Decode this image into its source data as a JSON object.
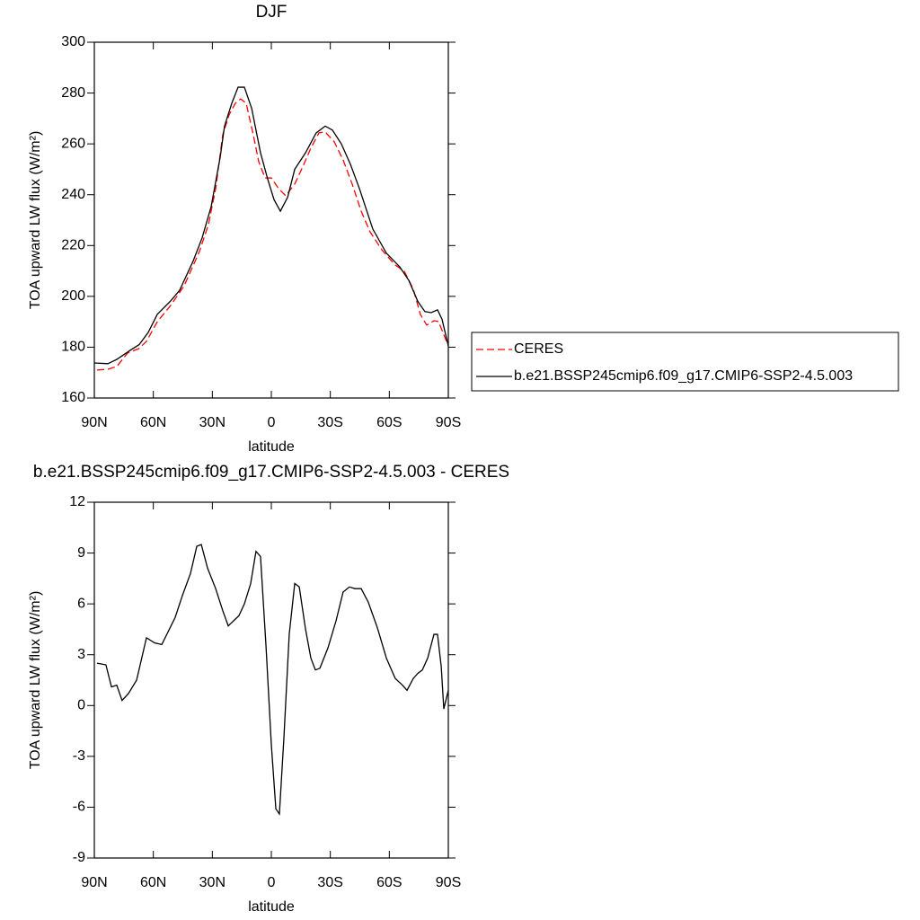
{
  "chart_data": [
    {
      "type": "line",
      "title": "DJF",
      "xlabel": "latitude",
      "ylabel": "TOA upward LW flux (W/m²)",
      "xlim": [
        90,
        -90
      ],
      "ylim": [
        160,
        300
      ],
      "xticks": [
        {
          "value": 90,
          "label": "90N"
        },
        {
          "value": 60,
          "label": "60N"
        },
        {
          "value": 30,
          "label": "30N"
        },
        0,
        {
          "value": -30,
          "label": "30S"
        },
        {
          "value": -60,
          "label": "60S"
        },
        {
          "value": -90,
          "label": "90S"
        }
      ],
      "yticks": [
        160,
        180,
        200,
        220,
        240,
        260,
        280,
        300
      ],
      "legend": "right",
      "series": [
        {
          "name": "CERES",
          "color": "#ff0000",
          "style": "dashed",
          "x": [
            88.6,
            83.1,
            78.6,
            73.1,
            67.2,
            63.5,
            58.0,
            51.2,
            44.3,
            36.6,
            32.0,
            28.3,
            24.7,
            21.5,
            18.3,
            15.6,
            12.8,
            9.2,
            6.4,
            3.2,
            0,
            -3.7,
            -7.3,
            -11.9,
            -15.5,
            -20.1,
            -24.2,
            -27.4,
            -32.0,
            -36.5,
            -41.1,
            -45.7,
            -50.2,
            -56.2,
            -63.0,
            -67.6,
            -72.2,
            -75.8,
            -79.0,
            -82.7,
            -85.0,
            -90
          ],
          "values": [
            171,
            171.3,
            172.4,
            177.7,
            179.5,
            182.3,
            190,
            196.4,
            204.2,
            217.6,
            228.2,
            242.4,
            263.6,
            271.4,
            276,
            277.7,
            276,
            263.6,
            253,
            246.6,
            246.6,
            242.4,
            239.6,
            244.2,
            250.2,
            258.3,
            264.3,
            264.7,
            260.8,
            253.7,
            244.2,
            233.5,
            225.4,
            218.3,
            212.3,
            209.9,
            202.8,
            192.9,
            188.7,
            190.4,
            190.1,
            180.5
          ]
        },
        {
          "name": "b.e21.BSSP245cmip6.f09_g17.CMIP6-SSP2-4.5.003",
          "color": "#000000",
          "style": "solid",
          "x": [
            90,
            83.1,
            78.6,
            71.7,
            67.2,
            62.6,
            58.0,
            51.2,
            46.6,
            39.7,
            35.2,
            30.6,
            26.0,
            23.8,
            20.1,
            16.9,
            13.7,
            10.0,
            5.5,
            1.8,
            -1.4,
            -4.6,
            -8.3,
            -11.9,
            -17.4,
            -22.8,
            -27.4,
            -31.1,
            -35.6,
            -40.2,
            -44.8,
            -51.6,
            -58.5,
            -65.3,
            -69.9,
            -74.5,
            -78.1,
            -81.3,
            -84.5,
            -86.8,
            -90
          ],
          "values": [
            173.8,
            173.5,
            175.2,
            178.8,
            181,
            185.8,
            192.9,
            198.2,
            202.4,
            214,
            223,
            235.3,
            254.8,
            267,
            276,
            282.3,
            282.3,
            274,
            256.5,
            246,
            238,
            233.5,
            239,
            250,
            256.5,
            264.3,
            267,
            265.4,
            260,
            252,
            242.4,
            226.5,
            217,
            211.6,
            206.3,
            198,
            194,
            193.6,
            194.7,
            191,
            180.5
          ]
        }
      ]
    },
    {
      "type": "line",
      "title": "b.e21.BSSP245cmip6.f09_g17.CMIP6-SSP2-4.5.003 - CERES",
      "xlabel": "latitude",
      "ylabel": "TOA upward LW flux (W/m²)",
      "xlim": [
        90,
        -90
      ],
      "ylim": [
        -9,
        12
      ],
      "xticks": [
        {
          "value": 90,
          "label": "90N"
        },
        {
          "value": 60,
          "label": "60N"
        },
        {
          "value": 30,
          "label": "30N"
        },
        0,
        {
          "value": -30,
          "label": "30S"
        },
        {
          "value": -60,
          "label": "60S"
        },
        {
          "value": -90,
          "label": "90S"
        }
      ],
      "yticks": [
        -9,
        -6,
        -3,
        0,
        3,
        6,
        9,
        12
      ],
      "color": "#000000",
      "x": [
        88.6,
        84.1,
        81.3,
        78.6,
        75.9,
        72.7,
        68.5,
        63.5,
        59.4,
        55.7,
        48.9,
        45.2,
        41.1,
        37.9,
        35.6,
        32.4,
        28.3,
        24.7,
        21.9,
        16.5,
        13.7,
        10.5,
        7.8,
        5.5,
        2.7,
        0,
        -2.3,
        -4.1,
        -6.4,
        -9.1,
        -11.9,
        -14.2,
        -17.4,
        -20.1,
        -22.4,
        -24.7,
        -28.8,
        -32.9,
        -36.5,
        -39.7,
        -42.5,
        -45.7,
        -49.3,
        -53.9,
        -58.5,
        -63.0,
        -66.7,
        -69.0,
        -72.2,
        -74.5,
        -76.8,
        -79.5,
        -82.7,
        -84.5,
        -86.4,
        -87.7,
        -90
      ],
      "values": [
        2.5,
        2.4,
        1.1,
        1.2,
        0.3,
        0.7,
        1.5,
        4.0,
        3.7,
        3.6,
        5.2,
        6.5,
        7.8,
        9.4,
        9.5,
        8.1,
        6.9,
        5.6,
        4.7,
        5.3,
        6.0,
        7.2,
        9.1,
        8.8,
        3.5,
        -2.3,
        -6.1,
        -6.4,
        -1.9,
        4.2,
        7.2,
        7.0,
        4.5,
        2.8,
        2.1,
        2.2,
        3.4,
        5.0,
        6.7,
        7.0,
        6.9,
        6.9,
        6.1,
        4.6,
        2.8,
        1.6,
        1.2,
        0.9,
        1.6,
        1.9,
        2.1,
        2.8,
        4.2,
        4.2,
        2.3,
        -0.2,
        0.9
      ]
    }
  ]
}
